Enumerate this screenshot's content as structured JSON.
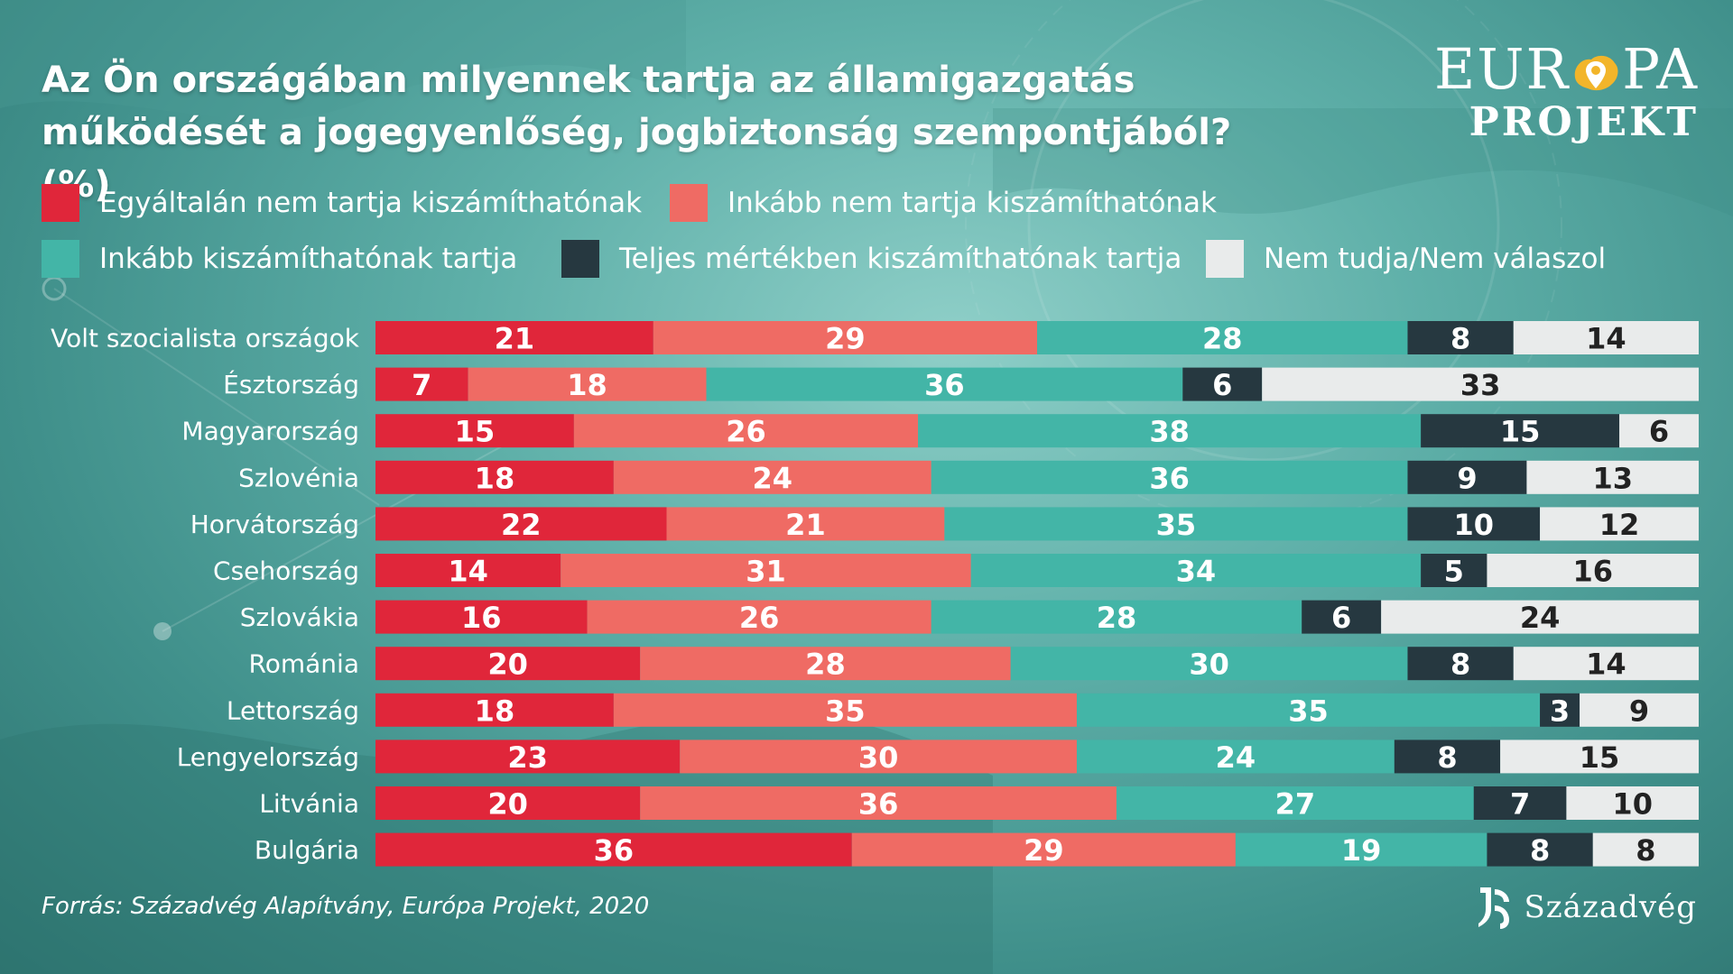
{
  "title": "Az Ön országában milyennek tartja az államigazgatás működését a jogegyenlőség, jogbiztonság szempontjából? (%)",
  "logo": {
    "top": "EUR PA",
    "top_left": "EUR",
    "top_right": "PA",
    "bottom": "PROJEKT",
    "pin_color": "#f2b52a"
  },
  "source": "Forrás: Századvég Alapítvány, Európa Projekt, 2020",
  "brand": "Századvég",
  "chart_data": {
    "type": "bar",
    "orientation": "horizontal",
    "stacked": true,
    "title": "Az Ön országában milyennek tartja az államigazgatás működését a jogegyenlőség, jogbiztonság szempontjából? (%)",
    "xlabel": "",
    "ylabel": "",
    "xlim": [
      0,
      100
    ],
    "grid": false,
    "legend_position": "top",
    "categories": [
      "Volt szocialista országok",
      "Észtország",
      "Magyarország",
      "Szlovénia",
      "Horvátország",
      "Csehország",
      "Szlovákia",
      "Románia",
      "Lettország",
      "Lengyelország",
      "Litvánia",
      "Bulgária"
    ],
    "series": [
      {
        "name": "Egyáltalán nem tartja kiszámíthatónak",
        "color": "#e0263a",
        "values": [
          21,
          7,
          15,
          18,
          22,
          14,
          16,
          20,
          18,
          23,
          20,
          36
        ]
      },
      {
        "name": "Inkább nem tartja kiszámíthatónak",
        "color": "#ef6b64",
        "values": [
          29,
          18,
          26,
          24,
          21,
          31,
          26,
          28,
          35,
          30,
          36,
          29
        ]
      },
      {
        "name": "Inkább kiszámíthatónak tartja",
        "color": "#43b5a7",
        "values": [
          28,
          36,
          38,
          36,
          35,
          34,
          28,
          30,
          35,
          24,
          27,
          19
        ]
      },
      {
        "name": "Teljes mértékben kiszámíthatónak tartja",
        "color": "#263840",
        "values": [
          8,
          6,
          15,
          9,
          10,
          5,
          6,
          8,
          3,
          8,
          7,
          8
        ]
      },
      {
        "name": "Nem tudja/Nem válaszol",
        "color": "#e9ebeb",
        "values": [
          14,
          33,
          6,
          13,
          12,
          16,
          24,
          14,
          9,
          15,
          10,
          8
        ]
      }
    ]
  }
}
